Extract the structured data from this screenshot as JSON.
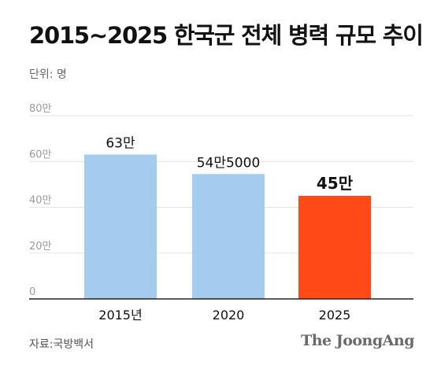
{
  "title": "2015~2025 한국군 전체 병력 규모 추이",
  "unit_label": "단위: 명",
  "source": "자료:국방백서",
  "brand": "The JoongAng",
  "colors": {
    "bar_default": "#a4ccee",
    "bar_highlight": "#ff4a17",
    "grid": "#e3e3e3",
    "tick_text": "#9a9a9a",
    "axis_line": "#222222"
  },
  "chart_data": {
    "type": "bar",
    "categories": [
      "2015년",
      "2020",
      "2025"
    ],
    "values": [
      630000,
      545000,
      450000
    ],
    "data_labels": [
      "63만",
      "54만5000",
      "45만"
    ],
    "highlight_index": 2,
    "y_ticks": [
      0,
      200000,
      400000,
      600000,
      800000
    ],
    "y_tick_labels": [
      "0",
      "20만",
      "40만",
      "60만",
      "80만"
    ],
    "ylim": [
      0,
      800000
    ],
    "grid": true,
    "legend": false
  }
}
